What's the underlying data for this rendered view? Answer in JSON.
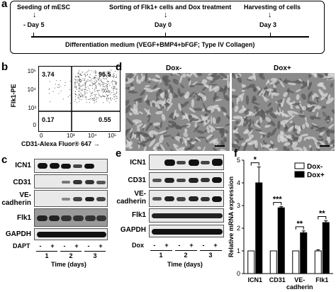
{
  "panel_a": {
    "letter": "a",
    "header_left": "Seeding of mESC",
    "header_mid": "Sorting of Flk1+ cells and Dox treatment",
    "header_right": "Harvesting of cells",
    "day_left": "- Day 5",
    "day_mid": "Day 0",
    "day_right": "Day 3",
    "medium": "Differentiation medium (VEGF+BMP4+bFGF; Type IV Collagen)"
  },
  "panel_b": {
    "letter": "b",
    "ylabel": "Flk1-PE",
    "xlabel": "CD31-Alexa Fluor® 647 →",
    "q_tl": "3.74",
    "q_tr": "95.5",
    "q_bl": "0.17",
    "q_br": "0.55",
    "ticks_y": [
      "10⁵",
      "10⁴",
      "10³",
      "0"
    ],
    "ticks_x": [
      "0",
      "10³",
      "10⁴",
      "10⁵"
    ]
  },
  "panel_d": {
    "letter": "d",
    "label_left": "Dox-",
    "label_right": "Dox+"
  },
  "panel_c": {
    "letter": "c",
    "rows": [
      "ICN1",
      "CD31",
      "VE-",
      "cadherin",
      "Flk1",
      "GAPDH"
    ],
    "treatment": "DAPT",
    "signs": [
      "-",
      "+",
      "-",
      "+",
      "-",
      "+"
    ],
    "days": [
      "1",
      "2",
      "3"
    ],
    "xlabel": "Time (days)"
  },
  "panel_e": {
    "letter": "e",
    "rows": [
      "ICN1",
      "CD31",
      "VE-",
      "cadherin",
      "Flk1",
      "GAPDH"
    ],
    "treatment": "Dox",
    "signs": [
      "-",
      "+",
      "-",
      "+",
      "-",
      "+"
    ],
    "days": [
      "1",
      "2",
      "3"
    ],
    "xlabel": "Time (days)"
  },
  "panel_f": {
    "letter": "f"
  },
  "chart_data": {
    "type": "bar",
    "categories": [
      "ICN1",
      "CD31",
      "VE-cadherin",
      "Flk1"
    ],
    "category_lines": [
      [
        "ICN1"
      ],
      [
        "CD31"
      ],
      [
        "VE-",
        "cadherin"
      ],
      [
        "Flk1"
      ]
    ],
    "series": [
      {
        "name": "Dox-",
        "values": [
          1.0,
          1.0,
          1.0,
          1.0
        ],
        "errors": [
          0,
          0,
          0,
          0.05
        ],
        "color": "#ffffff"
      },
      {
        "name": "Dox+",
        "values": [
          4.0,
          2.9,
          1.8,
          2.25
        ],
        "errors": [
          0.7,
          0.05,
          0.08,
          0.08
        ],
        "color": "#000000"
      }
    ],
    "significance": [
      "*",
      "***",
      "**",
      "**"
    ],
    "ylabel": "Relative mRNA expression",
    "ylim": [
      0,
      5
    ],
    "yticks": [
      "0",
      "1",
      "2",
      "3",
      "4",
      "5"
    ],
    "legend_position": "top-right"
  }
}
